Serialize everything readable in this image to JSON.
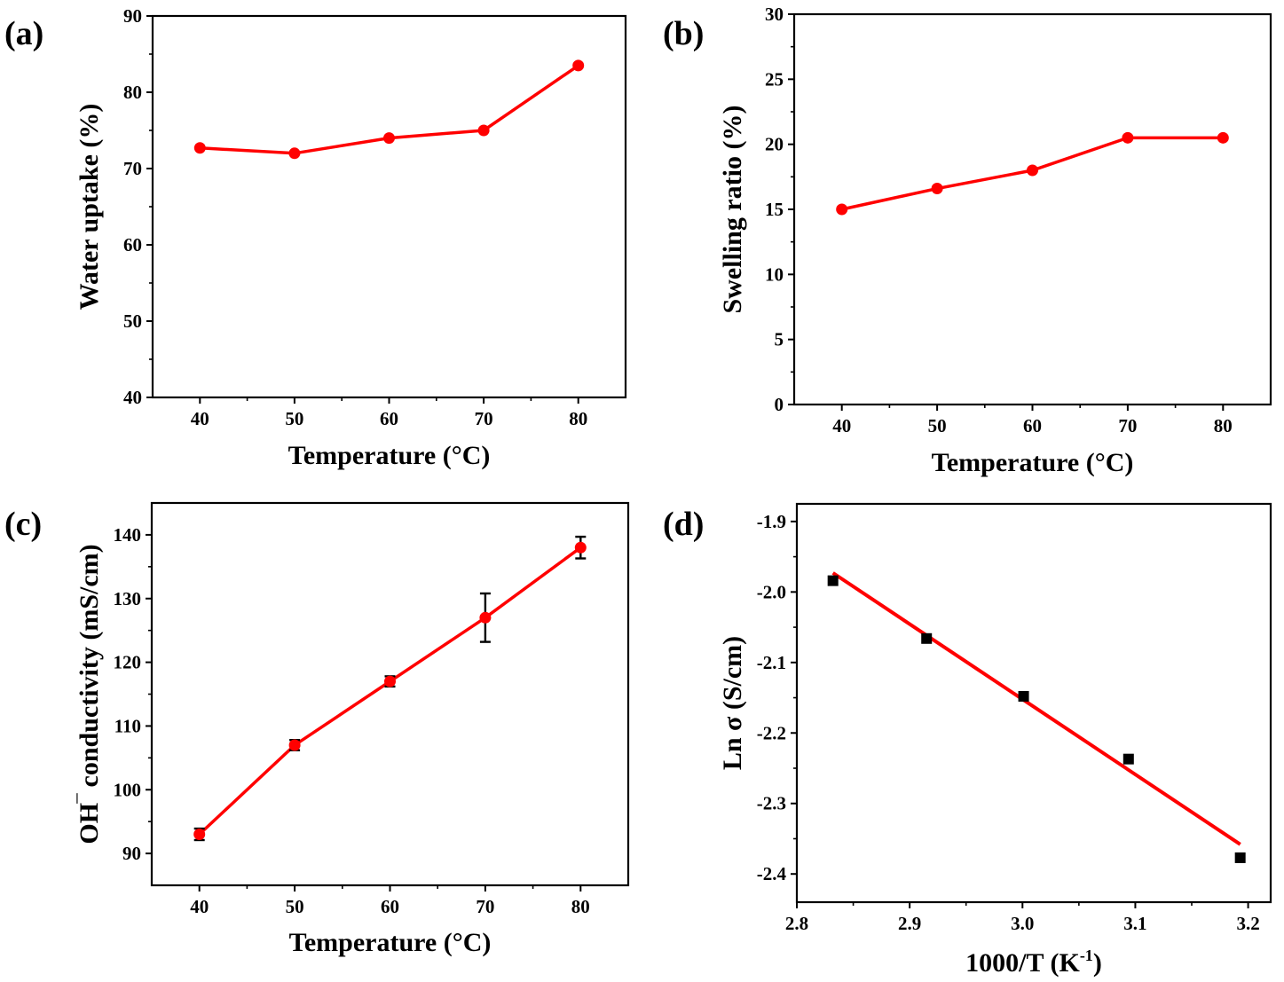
{
  "figure": {
    "title": ""
  },
  "colors": {
    "line": "#ff0000",
    "marker": "#ff0000",
    "black_marker": "#000000",
    "axis": "#000000"
  },
  "chart_data": [
    {
      "panel_label": "(a)",
      "type": "line",
      "xlabel": "Temperature (°C)",
      "ylabel": "Water uptake (%)",
      "xlim": [
        35,
        85
      ],
      "ylim": [
        40,
        90
      ],
      "xticks": [
        "40",
        "50",
        "60",
        "70",
        "80"
      ],
      "yticks": [
        "40",
        "50",
        "60",
        "70",
        "80",
        "90"
      ],
      "series": [
        {
          "name": "Water uptake",
          "x": [
            40,
            50,
            60,
            70,
            80
          ],
          "y": [
            72.7,
            72.0,
            74.0,
            75.0,
            83.5
          ]
        }
      ]
    },
    {
      "panel_label": "(b)",
      "type": "line",
      "xlabel": "Temperature (°C)",
      "ylabel": "Swelling ratio (%)",
      "xlim": [
        35,
        85
      ],
      "ylim": [
        0,
        30
      ],
      "xticks": [
        "40",
        "50",
        "60",
        "70",
        "80"
      ],
      "yticks": [
        "0",
        "5",
        "10",
        "15",
        "20",
        "25",
        "30"
      ],
      "series": [
        {
          "name": "Swelling ratio",
          "x": [
            40,
            50,
            60,
            70,
            80
          ],
          "y": [
            15.0,
            16.6,
            18.0,
            20.5,
            20.5
          ]
        }
      ]
    },
    {
      "panel_label": "(c)",
      "type": "line",
      "xlabel": "Temperature (°C)",
      "ylabel": "OH‾ conductivity (mS/cm)",
      "xlim": [
        35,
        85
      ],
      "ylim": [
        85,
        145
      ],
      "xticks": [
        "40",
        "50",
        "60",
        "70",
        "80"
      ],
      "yticks": [
        "90",
        "100",
        "110",
        "120",
        "130",
        "140"
      ],
      "series": [
        {
          "name": "OH- conductivity",
          "x": [
            40,
            50,
            60,
            70,
            80
          ],
          "y": [
            93.0,
            107.0,
            117.0,
            127.0,
            138.0
          ],
          "error": [
            0.9,
            0.8,
            0.8,
            3.8,
            1.7
          ]
        }
      ]
    },
    {
      "panel_label": "(d)",
      "type": "scatter",
      "xlabel": "1000/T (K",
      "xlabel_sup": "-1",
      "xlabel_end": ")",
      "ylabel": "Ln σ (S/cm)",
      "xlim": [
        2.8,
        3.22
      ],
      "ylim": [
        -2.44,
        -1.875
      ],
      "xticks": [
        "2.8",
        "2.9",
        "3.0",
        "3.1",
        "3.2"
      ],
      "yticks": [
        "-1.9",
        "-2.0",
        "-2.1",
        "-2.2",
        "-2.3",
        "-2.4"
      ],
      "series": [
        {
          "name": "Ln sigma",
          "x": [
            2.832,
            2.915,
            3.001,
            3.094,
            3.193
          ],
          "y": [
            -1.984,
            -2.066,
            -2.148,
            -2.237,
            -2.377
          ]
        }
      ],
      "fit": {
        "x": [
          2.832,
          3.193
        ],
        "y": [
          -1.973,
          -2.358
        ]
      }
    }
  ]
}
